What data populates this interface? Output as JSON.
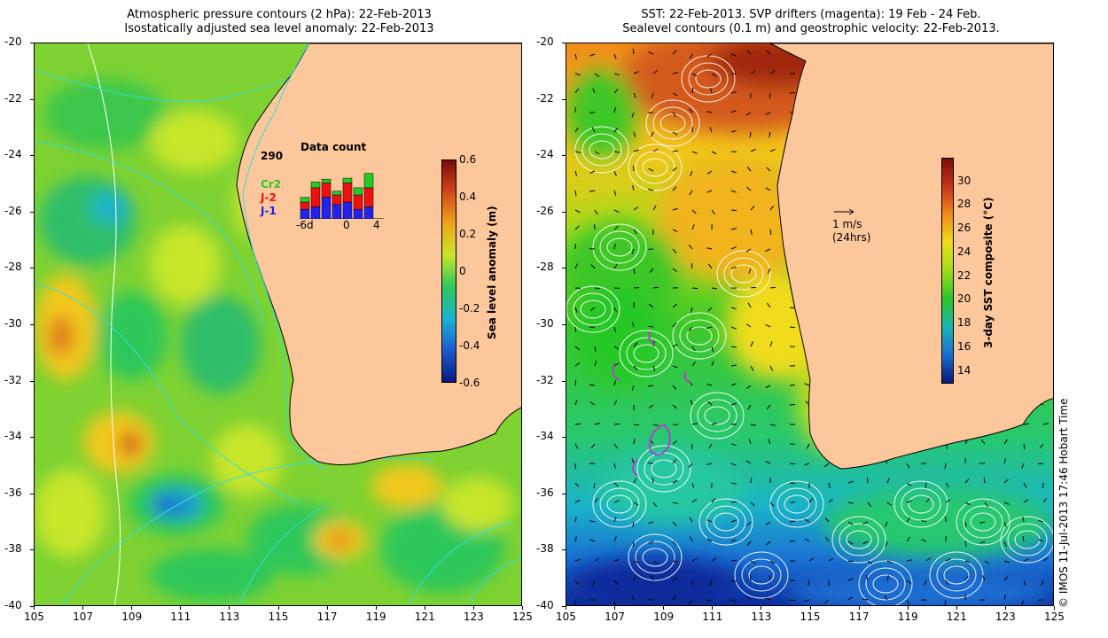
{
  "left_map": {
    "title_line1": "Atmospheric pressure contours (2 hPa): 22-Feb-2013",
    "title_line2": "Isostatically adjusted sea level anomaly: 22-Feb-2013",
    "colorbar": {
      "label": "Sea level anomaly (m)",
      "ticks": [
        "0.6",
        "0.4",
        "0.2",
        "0",
        "-0.2",
        "-0.4",
        "-0.6"
      ],
      "colors": [
        "#7a0d0d",
        "#d4461a",
        "#f0a51a",
        "#c8e62a",
        "#2dc85a",
        "#1ab4d2",
        "#1a5ad2",
        "#0a1a7a"
      ]
    },
    "inset": {
      "title": "Data count",
      "max_count": "290",
      "legend": [
        {
          "label": "Cr2",
          "color": "#22cc22"
        },
        {
          "label": "J-2",
          "color": "#ee1111"
        },
        {
          "label": "J-1",
          "color": "#2222ee"
        }
      ],
      "xticks": [
        "-6d",
        "0",
        "4"
      ],
      "bars": [
        {
          "j1": 20,
          "j2": 15,
          "cr2": 10
        },
        {
          "j1": 25,
          "j2": 40,
          "cr2": 12
        },
        {
          "j1": 45,
          "j2": 30,
          "cr2": 8
        },
        {
          "j1": 30,
          "j2": 20,
          "cr2": 8
        },
        {
          "j1": 35,
          "j2": 40,
          "cr2": 10
        },
        {
          "j1": 20,
          "j2": 30,
          "cr2": 15
        },
        {
          "j1": 25,
          "j2": 40,
          "cr2": 30
        }
      ]
    }
  },
  "right_map": {
    "title_line1": "SST: 22-Feb-2013. SVP drifters (magenta): 19 Feb - 24 Feb.",
    "title_line2": "Sealevel contours (0.1 m) and geostrophic velocity: 22-Feb-2013.",
    "scale_arrow_label": "1 m/s",
    "scale_arrow_sublabel": "(24hrs)",
    "colorbar": {
      "label": "3-day SST composite (°C)",
      "ticks": [
        "30",
        "28",
        "26",
        "24",
        "22",
        "20",
        "18",
        "16",
        "14"
      ],
      "colors": [
        "#7a0d0d",
        "#c8321a",
        "#f08c1a",
        "#f0dc1a",
        "#a0dc1a",
        "#28c828",
        "#1ab4b4",
        "#1a6ed2",
        "#0a1a7a"
      ]
    }
  },
  "axes": {
    "lat_labels": [
      "-20",
      "-22",
      "-24",
      "-26",
      "-28",
      "-30",
      "-32",
      "-34",
      "-36",
      "-38",
      "-40"
    ],
    "lon_labels": [
      "105",
      "107",
      "109",
      "111",
      "113",
      "115",
      "117",
      "119",
      "121",
      "123",
      "125"
    ]
  },
  "credit": "© IMOS 11-Jul-2013 17:46 Hobart Time",
  "colors": {
    "land": "#fcc79a",
    "coastline": "#000000",
    "contour_cyan": "#33dddd",
    "contour_white": "#ffffff",
    "drifter_magenta": "#aa44cc"
  }
}
